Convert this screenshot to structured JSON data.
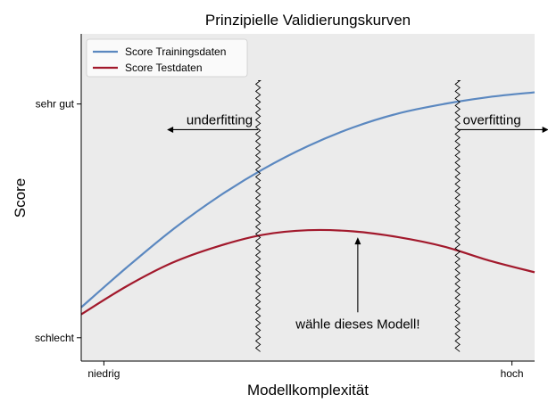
{
  "chart_data": {
    "type": "line",
    "title": "Prinzipielle Validierungskurven",
    "xlabel": "Modellkomplexität",
    "ylabel": "Score",
    "x_ticks": [
      {
        "x": 0.05,
        "label": "niedrig"
      },
      {
        "x": 0.95,
        "label": "hoch"
      }
    ],
    "y_ticks": [
      {
        "y": 0.0,
        "label": "schlecht"
      },
      {
        "y": 1.0,
        "label": "sehr gut"
      }
    ],
    "xlim": [
      0,
      1.0
    ],
    "ylim": [
      -0.1,
      1.3
    ],
    "grid": false,
    "legend_position": "top-left",
    "series": [
      {
        "name": "Score Trainingsdaten",
        "color": "#5b88c0",
        "x": [
          0.0,
          0.1,
          0.2,
          0.3,
          0.4,
          0.5,
          0.6,
          0.7,
          0.8,
          0.9,
          1.0
        ],
        "y": [
          0.13,
          0.3,
          0.46,
          0.6,
          0.72,
          0.82,
          0.9,
          0.96,
          1.0,
          1.03,
          1.05
        ]
      },
      {
        "name": "Score Testdaten",
        "color": "#a2192c",
        "x": [
          0.0,
          0.1,
          0.2,
          0.3,
          0.4,
          0.5,
          0.6,
          0.7,
          0.8,
          0.9,
          1.0
        ],
        "y": [
          0.1,
          0.22,
          0.32,
          0.39,
          0.44,
          0.46,
          0.455,
          0.43,
          0.39,
          0.33,
          0.28
        ]
      }
    ],
    "boundaries": [
      {
        "x": 0.39,
        "style": "zigzag"
      },
      {
        "x": 0.83,
        "style": "zigzag"
      }
    ],
    "annotations": [
      {
        "text": "underfitting",
        "arrow": "left",
        "x": 0.39,
        "y": 0.89
      },
      {
        "text": "overfitting",
        "arrow": "right",
        "x": 0.83,
        "y": 0.89
      },
      {
        "text": "wähle dieses Modell!",
        "arrow": "up",
        "x": 0.61,
        "y": 0.04,
        "arrow_to_y": 0.43
      }
    ]
  }
}
